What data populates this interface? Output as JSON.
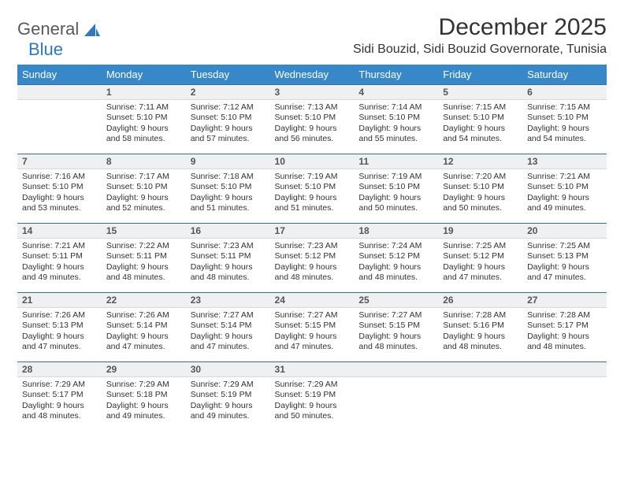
{
  "brand": {
    "part1": "General",
    "part2": "Blue"
  },
  "title": "December 2025",
  "location": "Sidi Bouzid, Sidi Bouzid Governorate, Tunisia",
  "day_headers": [
    "Sunday",
    "Monday",
    "Tuesday",
    "Wednesday",
    "Thursday",
    "Friday",
    "Saturday"
  ],
  "colors": {
    "header_bg": "#3788c8",
    "header_text": "#ffffff",
    "dayhead_bg": "#eef0f1",
    "dayhead_border_top": "#3a6f9e",
    "text": "#333333",
    "brand_gray": "#5a5a5a",
    "brand_blue": "#2f78bf"
  },
  "weeks": [
    [
      null,
      {
        "n": "1",
        "sunrise": "Sunrise: 7:11 AM",
        "sunset": "Sunset: 5:10 PM",
        "daylight": "Daylight: 9 hours and 58 minutes."
      },
      {
        "n": "2",
        "sunrise": "Sunrise: 7:12 AM",
        "sunset": "Sunset: 5:10 PM",
        "daylight": "Daylight: 9 hours and 57 minutes."
      },
      {
        "n": "3",
        "sunrise": "Sunrise: 7:13 AM",
        "sunset": "Sunset: 5:10 PM",
        "daylight": "Daylight: 9 hours and 56 minutes."
      },
      {
        "n": "4",
        "sunrise": "Sunrise: 7:14 AM",
        "sunset": "Sunset: 5:10 PM",
        "daylight": "Daylight: 9 hours and 55 minutes."
      },
      {
        "n": "5",
        "sunrise": "Sunrise: 7:15 AM",
        "sunset": "Sunset: 5:10 PM",
        "daylight": "Daylight: 9 hours and 54 minutes."
      },
      {
        "n": "6",
        "sunrise": "Sunrise: 7:15 AM",
        "sunset": "Sunset: 5:10 PM",
        "daylight": "Daylight: 9 hours and 54 minutes."
      }
    ],
    [
      {
        "n": "7",
        "sunrise": "Sunrise: 7:16 AM",
        "sunset": "Sunset: 5:10 PM",
        "daylight": "Daylight: 9 hours and 53 minutes."
      },
      {
        "n": "8",
        "sunrise": "Sunrise: 7:17 AM",
        "sunset": "Sunset: 5:10 PM",
        "daylight": "Daylight: 9 hours and 52 minutes."
      },
      {
        "n": "9",
        "sunrise": "Sunrise: 7:18 AM",
        "sunset": "Sunset: 5:10 PM",
        "daylight": "Daylight: 9 hours and 51 minutes."
      },
      {
        "n": "10",
        "sunrise": "Sunrise: 7:19 AM",
        "sunset": "Sunset: 5:10 PM",
        "daylight": "Daylight: 9 hours and 51 minutes."
      },
      {
        "n": "11",
        "sunrise": "Sunrise: 7:19 AM",
        "sunset": "Sunset: 5:10 PM",
        "daylight": "Daylight: 9 hours and 50 minutes."
      },
      {
        "n": "12",
        "sunrise": "Sunrise: 7:20 AM",
        "sunset": "Sunset: 5:10 PM",
        "daylight": "Daylight: 9 hours and 50 minutes."
      },
      {
        "n": "13",
        "sunrise": "Sunrise: 7:21 AM",
        "sunset": "Sunset: 5:10 PM",
        "daylight": "Daylight: 9 hours and 49 minutes."
      }
    ],
    [
      {
        "n": "14",
        "sunrise": "Sunrise: 7:21 AM",
        "sunset": "Sunset: 5:11 PM",
        "daylight": "Daylight: 9 hours and 49 minutes."
      },
      {
        "n": "15",
        "sunrise": "Sunrise: 7:22 AM",
        "sunset": "Sunset: 5:11 PM",
        "daylight": "Daylight: 9 hours and 48 minutes."
      },
      {
        "n": "16",
        "sunrise": "Sunrise: 7:23 AM",
        "sunset": "Sunset: 5:11 PM",
        "daylight": "Daylight: 9 hours and 48 minutes."
      },
      {
        "n": "17",
        "sunrise": "Sunrise: 7:23 AM",
        "sunset": "Sunset: 5:12 PM",
        "daylight": "Daylight: 9 hours and 48 minutes."
      },
      {
        "n": "18",
        "sunrise": "Sunrise: 7:24 AM",
        "sunset": "Sunset: 5:12 PM",
        "daylight": "Daylight: 9 hours and 48 minutes."
      },
      {
        "n": "19",
        "sunrise": "Sunrise: 7:25 AM",
        "sunset": "Sunset: 5:12 PM",
        "daylight": "Daylight: 9 hours and 47 minutes."
      },
      {
        "n": "20",
        "sunrise": "Sunrise: 7:25 AM",
        "sunset": "Sunset: 5:13 PM",
        "daylight": "Daylight: 9 hours and 47 minutes."
      }
    ],
    [
      {
        "n": "21",
        "sunrise": "Sunrise: 7:26 AM",
        "sunset": "Sunset: 5:13 PM",
        "daylight": "Daylight: 9 hours and 47 minutes."
      },
      {
        "n": "22",
        "sunrise": "Sunrise: 7:26 AM",
        "sunset": "Sunset: 5:14 PM",
        "daylight": "Daylight: 9 hours and 47 minutes."
      },
      {
        "n": "23",
        "sunrise": "Sunrise: 7:27 AM",
        "sunset": "Sunset: 5:14 PM",
        "daylight": "Daylight: 9 hours and 47 minutes."
      },
      {
        "n": "24",
        "sunrise": "Sunrise: 7:27 AM",
        "sunset": "Sunset: 5:15 PM",
        "daylight": "Daylight: 9 hours and 47 minutes."
      },
      {
        "n": "25",
        "sunrise": "Sunrise: 7:27 AM",
        "sunset": "Sunset: 5:15 PM",
        "daylight": "Daylight: 9 hours and 48 minutes."
      },
      {
        "n": "26",
        "sunrise": "Sunrise: 7:28 AM",
        "sunset": "Sunset: 5:16 PM",
        "daylight": "Daylight: 9 hours and 48 minutes."
      },
      {
        "n": "27",
        "sunrise": "Sunrise: 7:28 AM",
        "sunset": "Sunset: 5:17 PM",
        "daylight": "Daylight: 9 hours and 48 minutes."
      }
    ],
    [
      {
        "n": "28",
        "sunrise": "Sunrise: 7:29 AM",
        "sunset": "Sunset: 5:17 PM",
        "daylight": "Daylight: 9 hours and 48 minutes."
      },
      {
        "n": "29",
        "sunrise": "Sunrise: 7:29 AM",
        "sunset": "Sunset: 5:18 PM",
        "daylight": "Daylight: 9 hours and 49 minutes."
      },
      {
        "n": "30",
        "sunrise": "Sunrise: 7:29 AM",
        "sunset": "Sunset: 5:19 PM",
        "daylight": "Daylight: 9 hours and 49 minutes."
      },
      {
        "n": "31",
        "sunrise": "Sunrise: 7:29 AM",
        "sunset": "Sunset: 5:19 PM",
        "daylight": "Daylight: 9 hours and 50 minutes."
      },
      null,
      null,
      null
    ]
  ]
}
